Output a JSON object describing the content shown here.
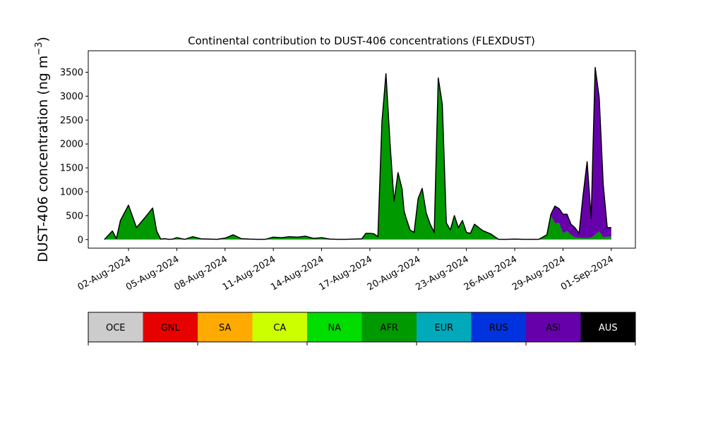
{
  "chart_data": {
    "type": "area",
    "stacked": true,
    "title": "Continental contribution to DUST-406 concentrations (FLEXDUST)",
    "ylabel": "DUST-406 concentration (ng m",
    "ylabel_superscript": "−3",
    "ylabel_close": ")",
    "xlabel": "",
    "ylim": [
      -180,
      3950
    ],
    "y_ticks": [
      0,
      500,
      1000,
      1500,
      2000,
      2500,
      3000,
      3500
    ],
    "y_tick_labels": [
      "0",
      "500",
      "1000",
      "1500",
      "2000",
      "2500",
      "3000",
      "3500"
    ],
    "x_ticks": [
      "2024-08-02",
      "2024-08-05",
      "2024-08-08",
      "2024-08-11",
      "2024-08-14",
      "2024-08-17",
      "2024-08-20",
      "2024-08-23",
      "2024-08-26",
      "2024-08-29",
      "2024-09-01"
    ],
    "x_tick_labels": [
      "02-Aug-2024",
      "05-Aug-2024",
      "08-Aug-2024",
      "11-Aug-2024",
      "14-Aug-2024",
      "17-Aug-2024",
      "20-Aug-2024",
      "23-Aug-2024",
      "26-Aug-2024",
      "29-Aug-2024",
      "01-Sep-2024"
    ],
    "xlim": [
      "2024-07-30T12:00",
      "2024-09-02T12:00"
    ],
    "grid": false,
    "x": [
      "2024-07-31T12:00",
      "2024-08-01T00:00",
      "2024-08-01T06:00",
      "2024-08-01T12:00",
      "2024-08-02T00:00",
      "2024-08-02T12:00",
      "2024-08-03T00:00",
      "2024-08-03T12:00",
      "2024-08-03T18:00",
      "2024-08-04T00:00",
      "2024-08-04T06:00",
      "2024-08-04T12:00",
      "2024-08-04T18:00",
      "2024-08-05T00:00",
      "2024-08-05T12:00",
      "2024-08-06T00:00",
      "2024-08-06T12:00",
      "2024-08-07T00:00",
      "2024-08-07T12:00",
      "2024-08-08T00:00",
      "2024-08-08T12:00",
      "2024-08-09T00:00",
      "2024-08-09T12:00",
      "2024-08-10T00:00",
      "2024-08-10T12:00",
      "2024-08-11T00:00",
      "2024-08-11T12:00",
      "2024-08-12T00:00",
      "2024-08-12T12:00",
      "2024-08-13T00:00",
      "2024-08-13T12:00",
      "2024-08-14T00:00",
      "2024-08-14T12:00",
      "2024-08-15T00:00",
      "2024-08-15T12:00",
      "2024-08-16T00:00",
      "2024-08-16T12:00",
      "2024-08-16T18:00",
      "2024-08-17T00:00",
      "2024-08-17T06:00",
      "2024-08-17T12:00",
      "2024-08-17T18:00",
      "2024-08-18T00:00",
      "2024-08-18T06:00",
      "2024-08-18T12:00",
      "2024-08-18T18:00",
      "2024-08-19T00:00",
      "2024-08-19T03:00",
      "2024-08-19T06:00",
      "2024-08-19T12:00",
      "2024-08-19T18:00",
      "2024-08-20T00:00",
      "2024-08-20T06:00",
      "2024-08-20T12:00",
      "2024-08-20T18:00",
      "2024-08-21T00:00",
      "2024-08-21T06:00",
      "2024-08-21T12:00",
      "2024-08-21T18:00",
      "2024-08-22T00:00",
      "2024-08-22T06:00",
      "2024-08-22T12:00",
      "2024-08-22T18:00",
      "2024-08-23T00:00",
      "2024-08-23T06:00",
      "2024-08-23T12:00",
      "2024-08-24T00:00",
      "2024-08-24T12:00",
      "2024-08-25T00:00",
      "2024-08-25T12:00",
      "2024-08-26T00:00",
      "2024-08-26T12:00",
      "2024-08-27T00:00",
      "2024-08-27T12:00",
      "2024-08-28T00:00",
      "2024-08-28T06:00",
      "2024-08-28T12:00",
      "2024-08-28T18:00",
      "2024-08-29T00:00",
      "2024-08-29T06:00",
      "2024-08-29T12:00",
      "2024-08-29T18:00",
      "2024-08-30T00:00",
      "2024-08-30T06:00",
      "2024-08-30T12:00",
      "2024-08-30T18:00",
      "2024-08-31T00:00",
      "2024-08-31T06:00",
      "2024-08-31T12:00",
      "2024-08-31T18:00",
      "2024-09-01T00:00"
    ],
    "series": [
      {
        "name": "OCE",
        "color": "#cccccc",
        "values": [
          0,
          0,
          0,
          0,
          0,
          0,
          0,
          0,
          0,
          0,
          0,
          0,
          0,
          0,
          0,
          0,
          0,
          0,
          0,
          0,
          0,
          0,
          0,
          0,
          0,
          0,
          0,
          0,
          0,
          0,
          0,
          0,
          0,
          0,
          0,
          0,
          0,
          0,
          0,
          0,
          0,
          0,
          0,
          0,
          0,
          0,
          0,
          0,
          0,
          0,
          0,
          0,
          0,
          0,
          0,
          0,
          0,
          0,
          0,
          0,
          0,
          0,
          0,
          0,
          0,
          0,
          0,
          0,
          0,
          0,
          0,
          0,
          0,
          0,
          0,
          0,
          0,
          0,
          0,
          0,
          0,
          0,
          0,
          0,
          0,
          0,
          0,
          0,
          0,
          0,
          0
        ]
      },
      {
        "name": "GNL",
        "color": "#e60000",
        "values": [
          0,
          0,
          0,
          0,
          0,
          0,
          0,
          0,
          0,
          0,
          0,
          0,
          0,
          0,
          0,
          0,
          0,
          0,
          0,
          0,
          0,
          0,
          0,
          0,
          0,
          0,
          0,
          0,
          0,
          0,
          0,
          0,
          0,
          0,
          0,
          0,
          0,
          0,
          0,
          0,
          0,
          0,
          0,
          0,
          0,
          0,
          0,
          0,
          0,
          0,
          0,
          0,
          0,
          0,
          0,
          0,
          0,
          0,
          0,
          0,
          0,
          0,
          0,
          0,
          0,
          0,
          0,
          0,
          0,
          0,
          0,
          0,
          0,
          0,
          0,
          0,
          0,
          0,
          0,
          0,
          0,
          0,
          0,
          0,
          0,
          0,
          0,
          0,
          0,
          0,
          0
        ]
      },
      {
        "name": "SA",
        "color": "#ffaa00",
        "values": [
          0,
          0,
          0,
          0,
          0,
          0,
          0,
          0,
          0,
          0,
          0,
          0,
          0,
          0,
          0,
          0,
          0,
          0,
          0,
          0,
          0,
          0,
          0,
          0,
          0,
          0,
          0,
          0,
          0,
          0,
          0,
          0,
          0,
          0,
          0,
          0,
          0,
          0,
          0,
          0,
          0,
          0,
          0,
          0,
          0,
          0,
          0,
          0,
          0,
          0,
          0,
          0,
          0,
          0,
          0,
          0,
          0,
          0,
          0,
          0,
          0,
          0,
          0,
          0,
          0,
          0,
          0,
          0,
          0,
          0,
          0,
          0,
          0,
          0,
          0,
          0,
          0,
          0,
          0,
          0,
          0,
          0,
          0,
          0,
          0,
          0,
          0,
          0,
          0,
          0,
          0
        ]
      },
      {
        "name": "CA",
        "color": "#ccff00",
        "values": [
          0,
          0,
          0,
          0,
          0,
          0,
          0,
          0,
          0,
          0,
          0,
          0,
          0,
          0,
          0,
          0,
          0,
          0,
          0,
          0,
          0,
          0,
          0,
          0,
          0,
          0,
          0,
          0,
          0,
          0,
          0,
          0,
          0,
          0,
          0,
          0,
          0,
          0,
          0,
          0,
          0,
          0,
          0,
          0,
          0,
          0,
          0,
          0,
          0,
          0,
          0,
          0,
          0,
          0,
          0,
          0,
          0,
          0,
          0,
          0,
          0,
          0,
          0,
          0,
          0,
          0,
          0,
          0,
          0,
          0,
          0,
          0,
          0,
          0,
          0,
          0,
          0,
          0,
          0,
          0,
          0,
          0,
          0,
          0,
          0,
          0,
          0,
          0,
          0,
          0,
          0
        ]
      },
      {
        "name": "NA",
        "color": "#00dd00",
        "values": [
          0,
          0,
          0,
          0,
          0,
          0,
          0,
          0,
          0,
          0,
          0,
          0,
          0,
          0,
          0,
          0,
          0,
          0,
          0,
          0,
          0,
          0,
          0,
          0,
          0,
          0,
          0,
          0,
          0,
          0,
          0,
          0,
          0,
          0,
          0,
          0,
          0,
          0,
          0,
          0,
          0,
          0,
          0,
          0,
          0,
          0,
          0,
          0,
          0,
          0,
          0,
          0,
          0,
          0,
          0,
          0,
          0,
          0,
          0,
          0,
          0,
          0,
          0,
          0,
          0,
          0,
          0,
          0,
          0,
          0,
          0,
          0,
          0,
          0,
          0,
          0,
          0,
          0,
          0,
          0,
          0,
          0,
          0,
          0,
          0,
          0,
          0,
          0,
          0,
          0,
          0
        ]
      },
      {
        "name": "AFR",
        "color": "#009900",
        "values": [
          0,
          180,
          20,
          400,
          720,
          250,
          450,
          660,
          180,
          10,
          20,
          5,
          10,
          40,
          5,
          60,
          15,
          10,
          5,
          30,
          100,
          20,
          10,
          5,
          5,
          50,
          40,
          60,
          50,
          70,
          25,
          40,
          10,
          5,
          5,
          10,
          15,
          130,
          130,
          120,
          60,
          2400,
          3300,
          2000,
          800,
          1380,
          1050,
          600,
          450,
          200,
          150,
          850,
          1050,
          550,
          320,
          150,
          3300,
          2800,
          350,
          200,
          500,
          250,
          400,
          150,
          130,
          320,
          190,
          120,
          5,
          5,
          10,
          5,
          5,
          5,
          100,
          500,
          340,
          350,
          130,
          180,
          100,
          45,
          40,
          30,
          30,
          40,
          100,
          170,
          50,
          60,
          60
        ]
      },
      {
        "name": "EUR",
        "color": "#00aabb",
        "values": [
          0,
          0,
          0,
          0,
          0,
          0,
          0,
          0,
          0,
          0,
          0,
          0,
          0,
          0,
          0,
          0,
          0,
          0,
          0,
          0,
          0,
          0,
          0,
          0,
          0,
          0,
          0,
          0,
          0,
          0,
          0,
          0,
          0,
          0,
          0,
          0,
          0,
          0,
          0,
          0,
          0,
          0,
          0,
          0,
          0,
          0,
          0,
          0,
          0,
          0,
          0,
          0,
          0,
          0,
          0,
          0,
          0,
          0,
          0,
          0,
          0,
          0,
          0,
          0,
          0,
          0,
          0,
          0,
          0,
          0,
          0,
          0,
          0,
          0,
          0,
          0,
          0,
          0,
          0,
          0,
          0,
          0,
          0,
          0,
          0,
          0,
          0,
          0,
          0,
          0,
          0
        ]
      },
      {
        "name": "RUS",
        "color": "#0033dd",
        "values": [
          0,
          0,
          0,
          0,
          0,
          0,
          0,
          0,
          0,
          0,
          0,
          0,
          0,
          0,
          0,
          0,
          0,
          0,
          0,
          0,
          0,
          0,
          0,
          0,
          0,
          0,
          0,
          0,
          0,
          0,
          0,
          0,
          0,
          0,
          0,
          0,
          0,
          0,
          0,
          0,
          0,
          60,
          170,
          30,
          0,
          20,
          10,
          0,
          0,
          0,
          0,
          10,
          20,
          5,
          0,
          0,
          80,
          30,
          0,
          0,
          0,
          0,
          0,
          0,
          0,
          0,
          0,
          0,
          0,
          0,
          0,
          0,
          0,
          0,
          0,
          0,
          0,
          0,
          0,
          0,
          0,
          0,
          0,
          0,
          0,
          0,
          0,
          0,
          0,
          0,
          0
        ]
      },
      {
        "name": "ASI",
        "color": "#6600aa",
        "values": [
          0,
          0,
          0,
          0,
          0,
          0,
          0,
          0,
          0,
          0,
          0,
          0,
          0,
          0,
          0,
          0,
          0,
          0,
          0,
          0,
          0,
          0,
          0,
          0,
          0,
          0,
          0,
          0,
          0,
          0,
          0,
          0,
          0,
          0,
          0,
          0,
          0,
          0,
          0,
          0,
          0,
          0,
          0,
          0,
          0,
          0,
          0,
          0,
          0,
          0,
          0,
          0,
          0,
          0,
          0,
          0,
          0,
          0,
          0,
          0,
          0,
          0,
          0,
          0,
          0,
          0,
          0,
          0,
          0,
          0,
          0,
          0,
          0,
          0,
          0,
          30,
          360,
          300,
          400,
          350,
          220,
          200,
          90,
          900,
          1600,
          400,
          3500,
          2800,
          1100,
          190,
          190
        ]
      },
      {
        "name": "AUS",
        "color": "#000000",
        "values": [
          0,
          0,
          0,
          0,
          0,
          0,
          0,
          0,
          0,
          0,
          0,
          0,
          0,
          0,
          0,
          0,
          0,
          0,
          0,
          0,
          0,
          0,
          0,
          0,
          0,
          0,
          0,
          0,
          0,
          0,
          0,
          0,
          0,
          0,
          0,
          0,
          0,
          0,
          0,
          0,
          0,
          0,
          0,
          0,
          0,
          0,
          0,
          0,
          0,
          0,
          0,
          0,
          0,
          0,
          0,
          0,
          0,
          0,
          0,
          0,
          0,
          0,
          0,
          0,
          0,
          0,
          0,
          0,
          0,
          0,
          0,
          0,
          0,
          0,
          0,
          0,
          0,
          0,
          0,
          0,
          0,
          0,
          0,
          0,
          0,
          0,
          0,
          0,
          0,
          0,
          0
        ]
      }
    ],
    "legend": {
      "placement": "bottom",
      "entries": [
        {
          "label": "OCE",
          "color": "#cccccc"
        },
        {
          "label": "GNL",
          "color": "#e60000"
        },
        {
          "label": "SA",
          "color": "#ffaa00"
        },
        {
          "label": "CA",
          "color": "#ccff00"
        },
        {
          "label": "NA",
          "color": "#00dd00"
        },
        {
          "label": "AFR",
          "color": "#009900"
        },
        {
          "label": "EUR",
          "color": "#00aabb"
        },
        {
          "label": "RUS",
          "color": "#0033dd"
        },
        {
          "label": "ASI",
          "color": "#6600aa"
        },
        {
          "label": "AUS",
          "color": "#000000"
        }
      ]
    }
  }
}
